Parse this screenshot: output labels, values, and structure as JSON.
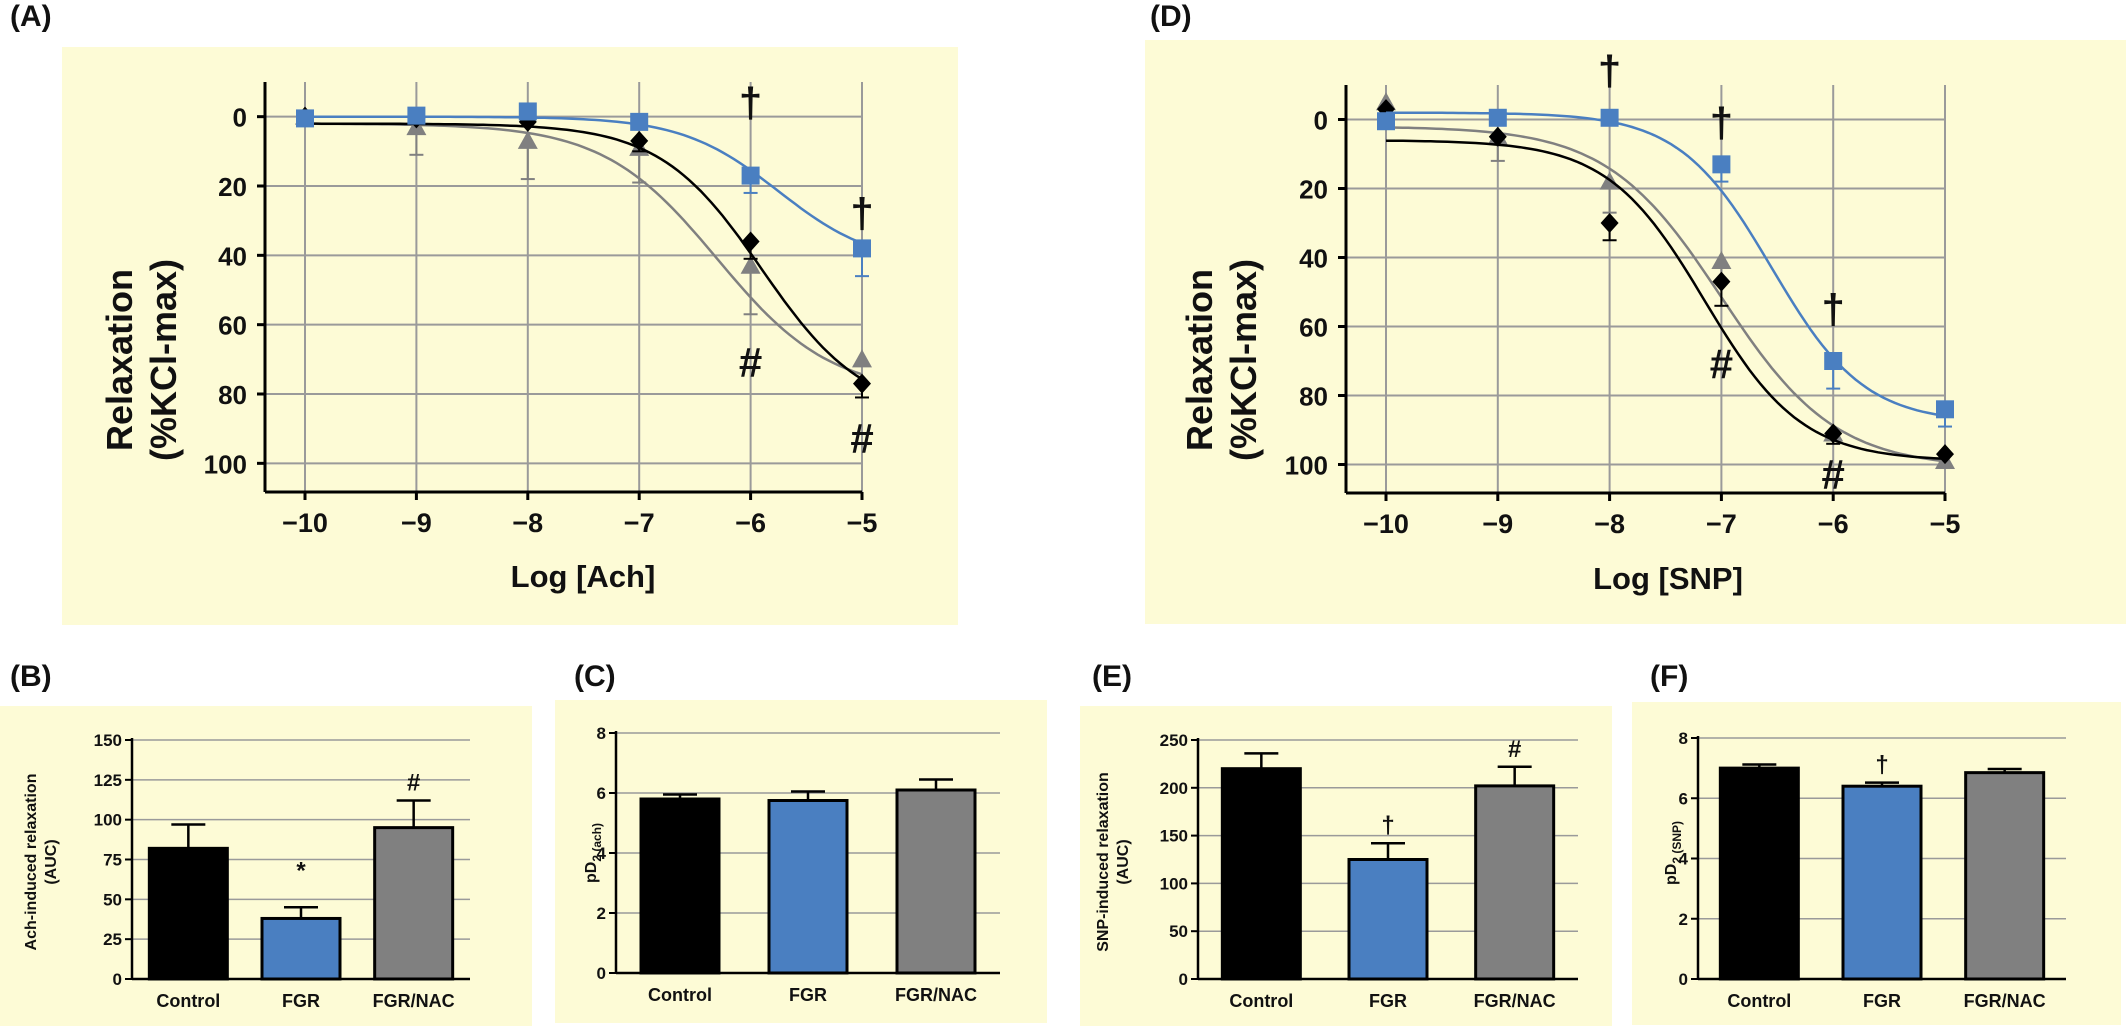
{
  "colors": {
    "panel_bg": "#fdfbd6",
    "control": "#000000",
    "fgr": "#4a7fc1",
    "fgr_nac": "#808080"
  },
  "chart_data": [
    {
      "panel": "(A)",
      "type": "line",
      "xlabel": "Log [Ach]",
      "ylabel": [
        "Relaxation",
        "(%KCl-max)"
      ],
      "x": [
        -10,
        -9,
        -8,
        -7,
        -6,
        -5
      ],
      "xlim": [
        -10,
        -5
      ],
      "ylim": [
        -10,
        110
      ],
      "y_reversed": true,
      "yticks": [
        0,
        20,
        40,
        60,
        80,
        100
      ],
      "grid": true,
      "series": [
        {
          "group": "fgr_nac",
          "marker": "triangle",
          "values": [
            0,
            3,
            7,
            9,
            43,
            70
          ],
          "err": [
            0,
            8,
            11,
            10,
            14,
            0
          ],
          "curve": {
            "bottom": 2,
            "top": 80,
            "logec50": -6.3,
            "hill": 0.85
          }
        },
        {
          "group": "control",
          "marker": "diamond",
          "values": [
            0,
            0.5,
            1.5,
            7,
            36,
            77
          ],
          "err": [
            0,
            0,
            0,
            3,
            5,
            4
          ],
          "curve": {
            "bottom": 2,
            "top": 86,
            "logec50": -5.9,
            "hill": 0.95
          }
        },
        {
          "group": "fgr",
          "marker": "square",
          "values": [
            0.5,
            -0.3,
            -1.5,
            1.5,
            17,
            38
          ],
          "err": [
            0,
            0,
            0,
            0,
            5,
            8
          ],
          "curve": {
            "bottom": 0,
            "top": 43,
            "logec50": -5.75,
            "hill": 1.0
          }
        }
      ],
      "annotations": [
        {
          "text": "†",
          "x": -6,
          "y": -4
        },
        {
          "text": "†",
          "x": -5,
          "y": 28
        },
        {
          "text": "#",
          "x": -6,
          "y": 71
        },
        {
          "text": "#",
          "x": -5,
          "y": 93
        }
      ]
    },
    {
      "panel": "(D)",
      "type": "line",
      "xlabel": "Log [SNP]",
      "ylabel": [
        "Relaxation",
        "(%KCl-max)"
      ],
      "x": [
        -10,
        -9,
        -8,
        -7,
        -6,
        -5
      ],
      "xlim": [
        -10,
        -5
      ],
      "ylim": [
        -10,
        110
      ],
      "y_reversed": true,
      "yticks": [
        0,
        20,
        40,
        60,
        80,
        100
      ],
      "grid": true,
      "series": [
        {
          "group": "fgr_nac",
          "marker": "triangle",
          "values": [
            -5,
            5,
            18,
            41,
            91,
            99
          ],
          "err": [
            0,
            7,
            9,
            6,
            0,
            0
          ],
          "curve": {
            "bottom": 2,
            "top": 101,
            "logec50": -7.0,
            "hill": 0.85
          }
        },
        {
          "group": "control",
          "marker": "diamond",
          "values": [
            -3,
            5,
            30,
            47,
            91,
            97
          ],
          "err": [
            0,
            0,
            5,
            7,
            3,
            0
          ],
          "curve": {
            "bottom": 6,
            "top": 99,
            "logec50": -7.15,
            "hill": 1.0
          }
        },
        {
          "group": "fgr",
          "marker": "square",
          "values": [
            0.5,
            -0.5,
            -0.5,
            13,
            70,
            84
          ],
          "err": [
            0,
            0,
            0,
            5,
            8,
            5
          ],
          "curve": {
            "bottom": -2,
            "top": 88,
            "logec50": -6.55,
            "hill": 1.05
          }
        }
      ],
      "annotations": [
        {
          "text": "†",
          "x": -8,
          "y": -14
        },
        {
          "text": "†",
          "x": -7,
          "y": 1
        },
        {
          "text": "†",
          "x": -6,
          "y": 55
        },
        {
          "text": "#",
          "x": -7,
          "y": 71
        },
        {
          "text": "#",
          "x": -6,
          "y": 103
        }
      ]
    },
    {
      "panel": "(B)",
      "type": "bar",
      "ylabel": [
        "Ach-induced relaxation",
        "(AUC)"
      ],
      "categories": [
        "Control",
        "FGR",
        "FGR/NAC"
      ],
      "groups": [
        "control",
        "fgr",
        "fgr_nac"
      ],
      "values": [
        82,
        38,
        95
      ],
      "err": [
        15,
        7,
        17
      ],
      "ylim": [
        0,
        150
      ],
      "yticks": [
        0,
        25,
        50,
        75,
        100,
        125,
        150
      ],
      "marks": [
        "",
        "*",
        "#"
      ]
    },
    {
      "panel": "(C)",
      "type": "bar",
      "ylabel": [
        "pD",
        "2 (ach)"
      ],
      "categories": [
        "Control",
        "FGR",
        "FGR/NAC"
      ],
      "groups": [
        "control",
        "fgr",
        "fgr_nac"
      ],
      "values": [
        5.8,
        5.75,
        6.1
      ],
      "err": [
        0.15,
        0.3,
        0.35
      ],
      "ylim": [
        0,
        8
      ],
      "yticks": [
        0,
        2,
        4,
        6,
        8
      ],
      "marks": [
        "",
        "",
        ""
      ]
    },
    {
      "panel": "(E)",
      "type": "bar",
      "ylabel": [
        "SNP-induced relaxation",
        "(AUC)"
      ],
      "categories": [
        "Control",
        "FGR",
        "FGR/NAC"
      ],
      "groups": [
        "control",
        "fgr",
        "fgr_nac"
      ],
      "values": [
        220,
        125,
        202
      ],
      "err": [
        16,
        17,
        20
      ],
      "ylim": [
        0,
        250
      ],
      "yticks": [
        0,
        50,
        100,
        150,
        200,
        250
      ],
      "marks": [
        "",
        "†",
        "#"
      ]
    },
    {
      "panel": "(F)",
      "type": "bar",
      "ylabel": [
        "pD",
        "2 (SNP)"
      ],
      "categories": [
        "Control",
        "FGR",
        "FGR/NAC"
      ],
      "groups": [
        "control",
        "fgr",
        "fgr_nac"
      ],
      "values": [
        7.0,
        6.4,
        6.85
      ],
      "err": [
        0.12,
        0.12,
        0.12
      ],
      "ylim": [
        0,
        8
      ],
      "yticks": [
        0,
        2,
        4,
        6,
        8
      ],
      "marks": [
        "",
        "†",
        ""
      ]
    }
  ]
}
